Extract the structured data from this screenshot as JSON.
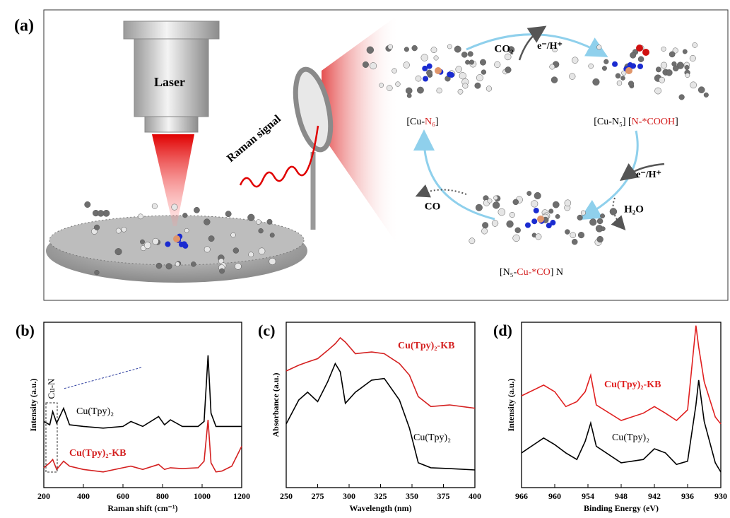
{
  "panel_a": {
    "label": "(a)",
    "laser": "Laser",
    "raman": "Raman signal",
    "co2": "CO₂",
    "step1": "e⁻/H⁺",
    "state1": [
      "[Cu-",
      "N₆",
      "]"
    ],
    "state2": [
      "[Cu-N₅] [",
      "N-*COOH",
      "]"
    ],
    "step2": "e⁻/H⁺",
    "h2o": "H₂O",
    "co": "CO",
    "state3": [
      "[N₅-",
      "Cu-*CO",
      "] N"
    ]
  },
  "chart_data": [
    {
      "type": "line",
      "title": "(b)",
      "x_label": "Raman shift (cm⁻¹)",
      "y_label": "Intensity (a.u.)",
      "annotations": [
        "Cu-N"
      ],
      "xlim": [
        200,
        1200
      ],
      "xticks": [
        200,
        400,
        600,
        800,
        1000,
        1200
      ],
      "ylim": [
        0,
        100
      ],
      "x": [
        200,
        230,
        245,
        265,
        300,
        330,
        400,
        500,
        600,
        640,
        700,
        780,
        810,
        840,
        900,
        980,
        1010,
        1030,
        1045,
        1070,
        1100,
        1150,
        1200
      ],
      "series": [
        {
          "name": "Cu(Tpy)₂",
          "color": "#000000",
          "values": [
            40,
            38,
            46,
            39,
            48,
            38,
            37,
            36,
            37,
            40,
            37,
            43,
            38,
            41,
            37,
            37,
            40,
            80,
            45,
            37,
            37,
            37,
            37
          ]
        },
        {
          "name": "Cu(Tpy)₂-KB",
          "color": "#d42020",
          "values": [
            12,
            15,
            17,
            11,
            16,
            13,
            11,
            9.5,
            12,
            13,
            11,
            14,
            11,
            12,
            11.5,
            12,
            16,
            41,
            15,
            9.5,
            10,
            13,
            25
          ]
        }
      ]
    },
    {
      "type": "line",
      "title": "(c)",
      "x_label": "Wavelength (nm)",
      "y_label": "Absorbance (a.u.)",
      "xlim": [
        250,
        400
      ],
      "xticks": [
        250,
        275,
        300,
        325,
        350,
        375,
        400
      ],
      "ylim": [
        0,
        100
      ],
      "x": [
        250,
        260,
        267,
        275,
        283,
        289,
        293,
        297,
        305,
        318,
        328,
        340,
        348,
        355,
        365,
        380,
        400
      ],
      "series": [
        {
          "name": "Cu(Tpy)₂-KB",
          "color": "#d42020",
          "values": [
            70.5,
            74,
            76,
            78,
            83,
            87,
            90.6,
            88,
            81,
            82,
            81,
            75,
            68,
            55,
            49,
            50,
            48
          ]
        },
        {
          "name": "Cu(Tpy)₂",
          "color": "#000000",
          "values": [
            38.5,
            53,
            57.7,
            52,
            64,
            75,
            70,
            51,
            57.7,
            65,
            66,
            53,
            36,
            15,
            12,
            11.5,
            10.7
          ]
        }
      ]
    },
    {
      "type": "line",
      "title": "(d)",
      "x_label": "Binding Energy (eV)",
      "y_label": "Intensity (a.u.)",
      "xlim": [
        966,
        930
      ],
      "xticks": [
        966,
        960,
        954,
        948,
        942,
        936,
        930
      ],
      "ylim": [
        0,
        100
      ],
      "x": [
        966,
        962,
        960,
        958,
        956,
        954.5,
        953.5,
        952.5,
        948,
        944,
        942,
        940,
        938,
        936,
        934.5,
        934,
        933,
        931,
        930
      ],
      "series": [
        {
          "name": "Cu(Tpy)₂-KB",
          "color": "#e02020",
          "values": [
            55.5,
            62,
            58,
            49,
            52,
            58,
            68,
            50,
            40.6,
            45,
            49,
            45,
            40.6,
            47,
            98,
            85,
            64,
            42.7,
            38.5
          ]
        },
        {
          "name": "Cu(Tpy)₂",
          "color": "#000000",
          "values": [
            21,
            30,
            26,
            21,
            17,
            28,
            39,
            25,
            15,
            17,
            23.5,
            21,
            14,
            16,
            50,
            65,
            40,
            15,
            9.4
          ]
        }
      ]
    }
  ]
}
